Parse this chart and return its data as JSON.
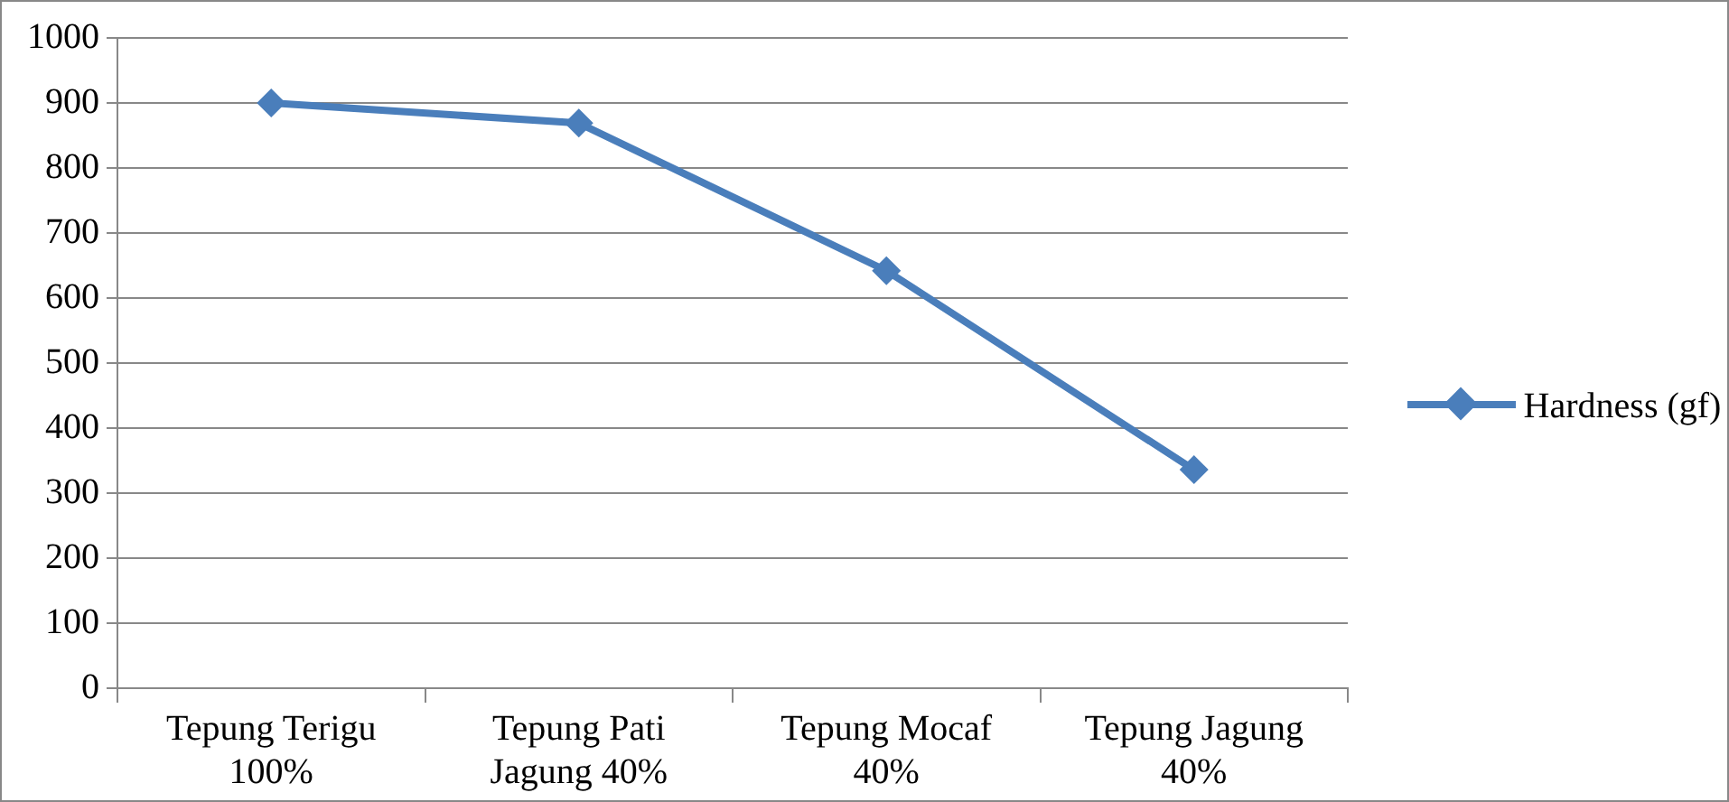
{
  "chart_data": {
    "type": "line",
    "categories": [
      "Tepung Terigu 100%",
      "Tepung Pati Jagung 40%",
      "Tepung Mocaf 40%",
      "Tepung Jagung 40%"
    ],
    "series": [
      {
        "name": "Hardness (gf)",
        "color": "#4a7ebb",
        "values": [
          900,
          869,
          642,
          336
        ]
      }
    ],
    "ylim": [
      0,
      1000
    ],
    "yticks": [
      0,
      100,
      200,
      300,
      400,
      500,
      600,
      700,
      800,
      900,
      1000
    ],
    "grid": "y",
    "legend": "right",
    "marker": "diamond",
    "line_style": "solid"
  }
}
